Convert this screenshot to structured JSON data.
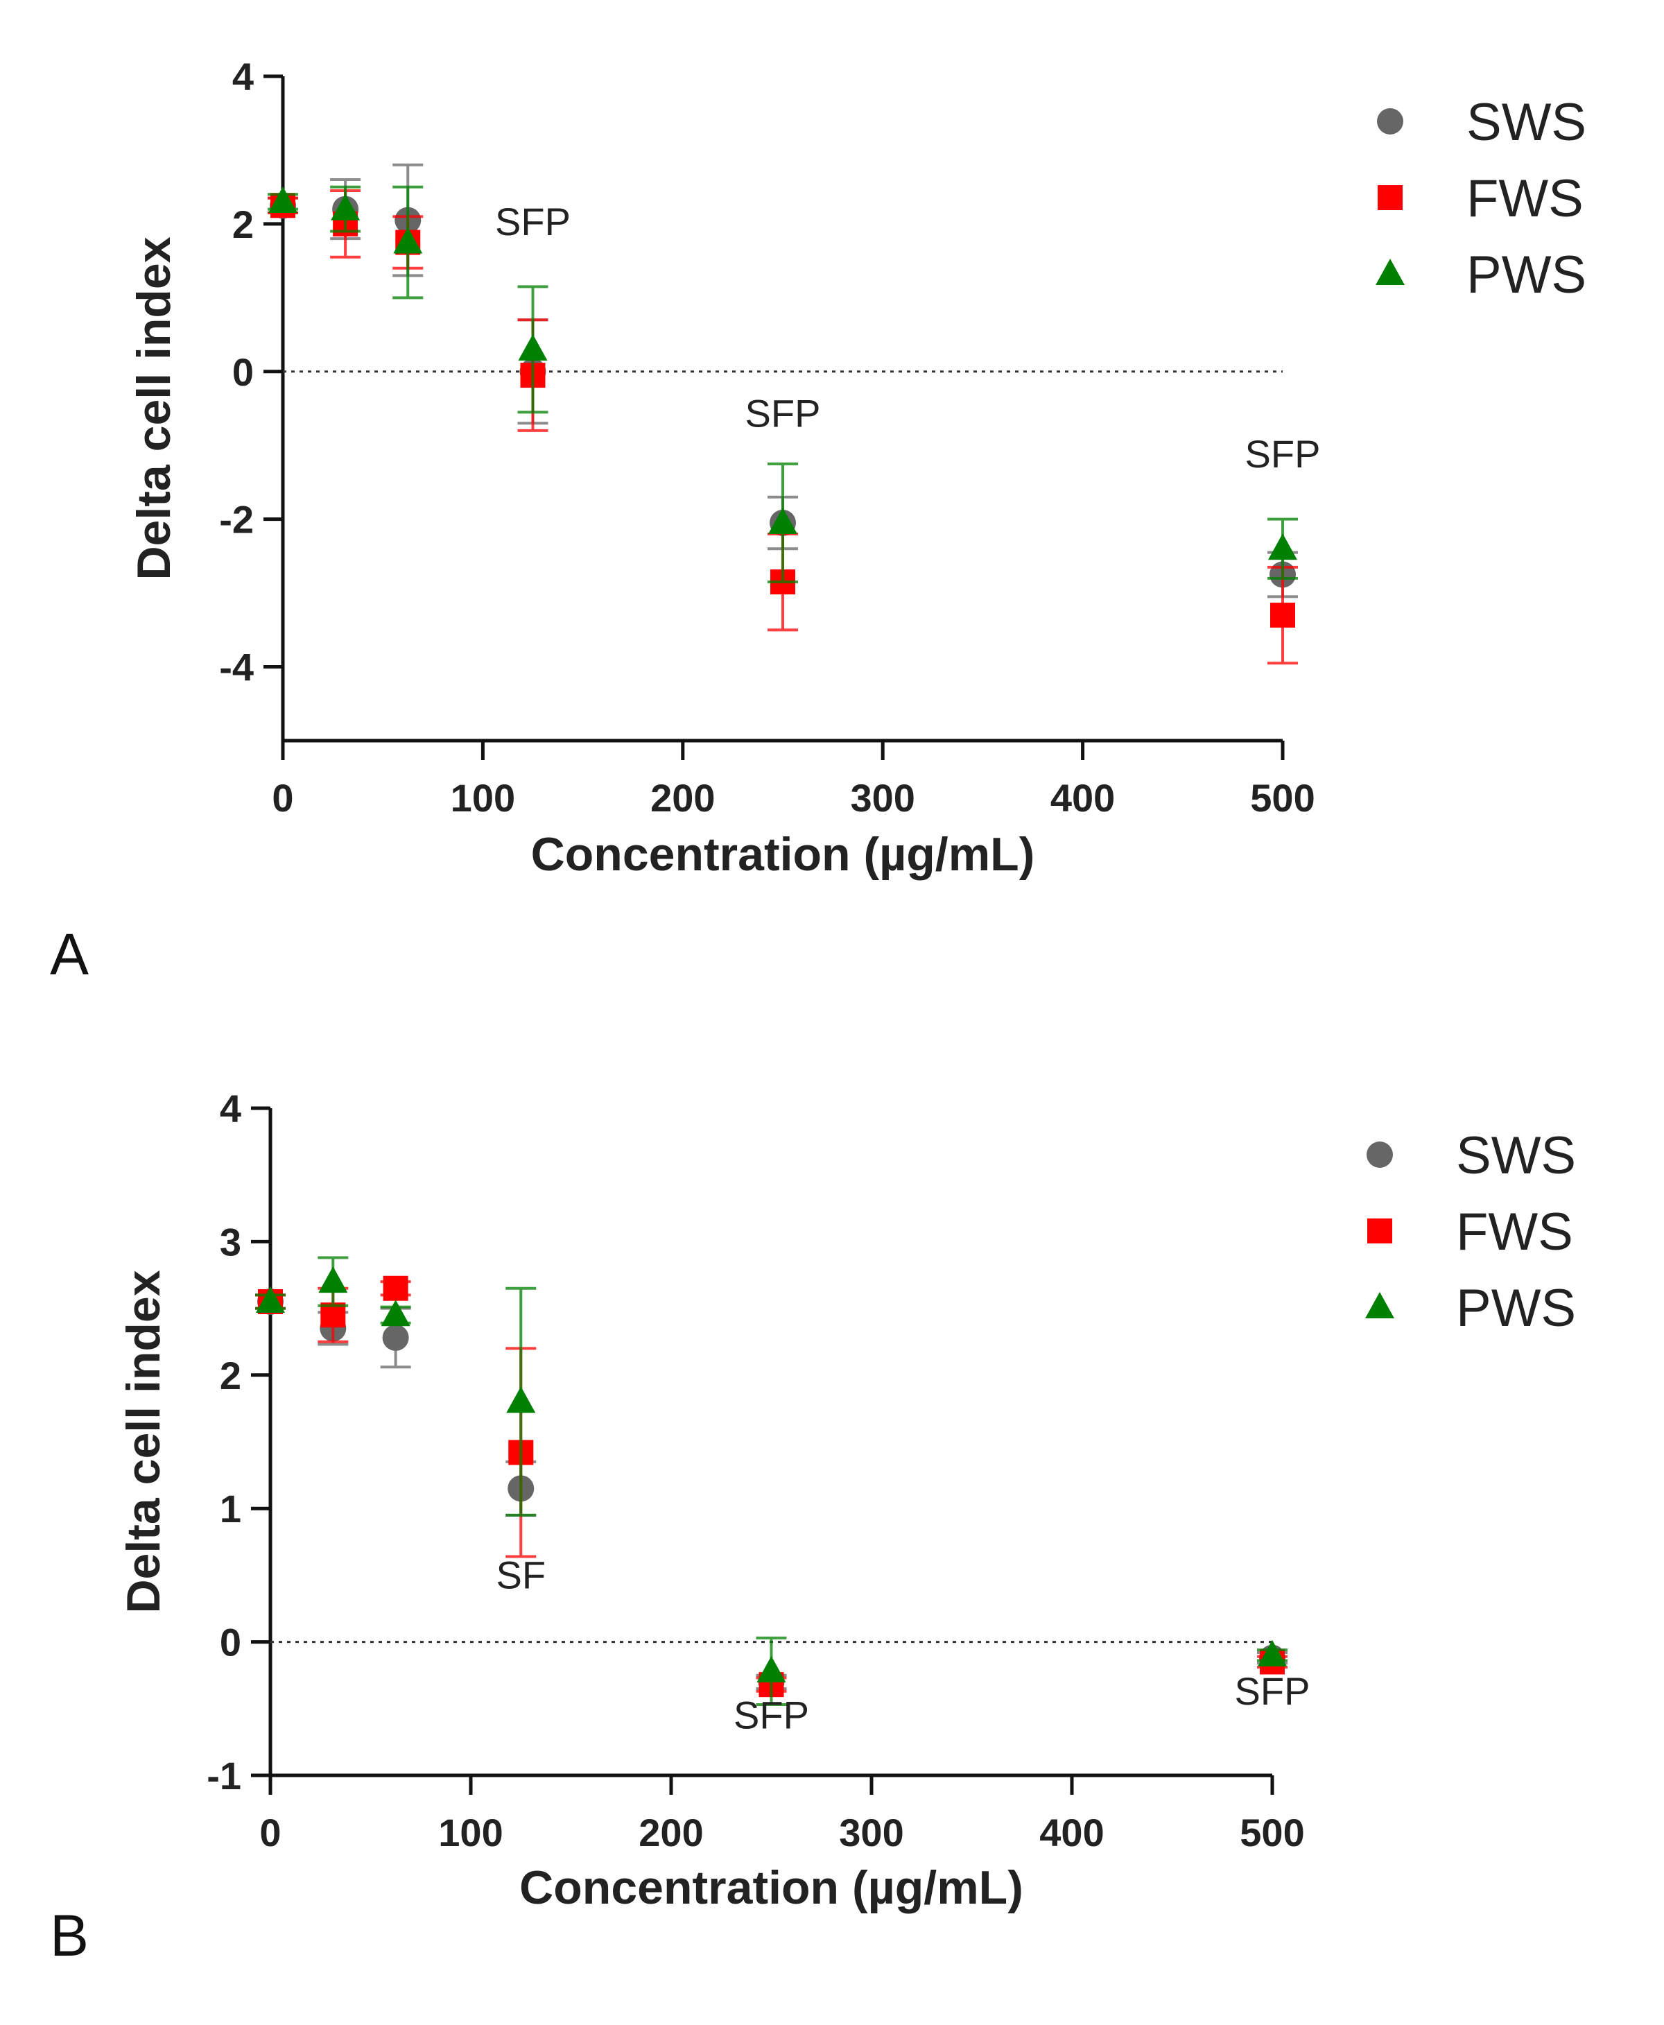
{
  "chart_data": [
    {
      "type": "scatter",
      "panel_label": "A",
      "xlabel": "Concentration (µg/mL)",
      "ylabel": "Delta cell index",
      "xlim": [
        0,
        500
      ],
      "ylim": [
        -5,
        4
      ],
      "xticks": [
        0,
        100,
        200,
        300,
        400,
        500
      ],
      "yticks": [
        -4,
        -2,
        0,
        2,
        4
      ],
      "zero_reference_line": true,
      "series": [
        {
          "name": "SWS",
          "marker": "circle",
          "color": "#666666",
          "x": [
            0,
            31.25,
            62.5,
            125,
            250,
            500
          ],
          "y": [
            2.25,
            2.2,
            2.05,
            0.0,
            -2.05,
            -2.75
          ],
          "err": [
            0.1,
            0.4,
            0.75,
            0.7,
            0.35,
            0.3
          ]
        },
        {
          "name": "FWS",
          "marker": "square",
          "color": "#ff0000",
          "x": [
            0,
            31.25,
            62.5,
            125,
            250,
            500
          ],
          "y": [
            2.25,
            2.0,
            1.75,
            -0.05,
            -2.85,
            -3.3
          ],
          "err": [
            0.1,
            0.45,
            0.35,
            0.75,
            0.65,
            0.65
          ]
        },
        {
          "name": "PWS",
          "marker": "triangle",
          "color": "#008000",
          "x": [
            0,
            31.25,
            62.5,
            125,
            250,
            500
          ],
          "y": [
            2.3,
            2.2,
            1.75,
            0.3,
            -2.05,
            -2.4
          ],
          "err": [
            0.1,
            0.3,
            0.75,
            0.85,
            0.8,
            0.4
          ]
        }
      ],
      "annotations": [
        {
          "text": "SFP",
          "x": 125,
          "y": 1.85
        },
        {
          "text": "SFP",
          "x": 250,
          "y": -0.75
        },
        {
          "text": "SFP",
          "x": 500,
          "y": -1.3
        }
      ],
      "legend": [
        "SWS",
        "FWS",
        "PWS"
      ]
    },
    {
      "type": "scatter",
      "panel_label": "B",
      "xlabel": "Concentration (µg/mL)",
      "ylabel": "Delta cell index",
      "xlim": [
        0,
        500
      ],
      "ylim": [
        -1,
        4
      ],
      "xticks": [
        0,
        100,
        200,
        300,
        400,
        500
      ],
      "yticks": [
        -1,
        0,
        1,
        2,
        3,
        4
      ],
      "zero_reference_line": true,
      "series": [
        {
          "name": "SWS",
          "marker": "circle",
          "color": "#666666",
          "x": [
            0,
            31.25,
            62.5,
            125,
            250,
            500
          ],
          "y": [
            2.55,
            2.35,
            2.28,
            1.15,
            -0.3,
            -0.12
          ],
          "err": [
            0.05,
            0.12,
            0.22,
            0.2,
            0.05,
            0.04
          ]
        },
        {
          "name": "FWS",
          "marker": "square",
          "color": "#ff0000",
          "x": [
            0,
            31.25,
            62.5,
            125,
            250,
            500
          ],
          "y": [
            2.55,
            2.45,
            2.65,
            1.42,
            -0.32,
            -0.15
          ],
          "err": [
            0.05,
            0.2,
            0.05,
            0.78,
            0.05,
            0.04
          ]
        },
        {
          "name": "PWS",
          "marker": "triangle",
          "color": "#008000",
          "x": [
            0,
            31.25,
            62.5,
            125,
            250,
            500
          ],
          "y": [
            2.55,
            2.7,
            2.45,
            1.8,
            -0.22,
            -0.1
          ],
          "err": [
            0.05,
            0.18,
            0.06,
            0.85,
            0.25,
            0.04
          ]
        }
      ],
      "annotations": [
        {
          "text": "SF",
          "x": 125,
          "y": 0.4
        },
        {
          "text": "SFP",
          "x": 250,
          "y": -0.65
        },
        {
          "text": "SFP",
          "x": 500,
          "y": -0.47
        }
      ],
      "legend": [
        "SWS",
        "FWS",
        "PWS"
      ]
    }
  ]
}
